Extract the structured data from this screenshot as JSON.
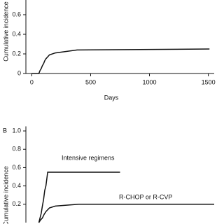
{
  "chart_data": [
    {
      "type": "line",
      "y_label": "Cumulative incidence",
      "x_label": "Days",
      "xlim": [
        -50,
        1550
      ],
      "xticks": [
        0,
        500,
        1000,
        1500
      ],
      "ylim": [
        0,
        0.75
      ],
      "yticks": [
        0,
        0.2,
        0.4,
        0.6
      ],
      "series": [
        {
          "color": "#111111",
          "x": [
            0,
            60,
            70,
            80,
            90,
            100,
            110,
            120,
            135,
            150,
            200,
            260,
            385,
            1510
          ],
          "values": [
            0,
            0,
            0.03,
            0.05,
            0.08,
            0.1,
            0.13,
            0.15,
            0.17,
            0.19,
            0.21,
            0.22,
            0.24,
            0.25
          ]
        }
      ]
    },
    {
      "type": "line",
      "panel_label": "B",
      "y_label": "Cumulative incidence",
      "xlim": [
        -50,
        1550
      ],
      "ylim": [
        0,
        1.05
      ],
      "yticks": [
        0.2,
        0.4,
        0.6,
        {
          "value": 0.8,
          "label": "0.8"
        },
        {
          "value": 1.0,
          "label": "1.0"
        }
      ],
      "series": [
        {
          "name": "Intensive regimens",
          "color": "#111111",
          "x": [
            60,
            70,
            80,
            90,
            100,
            110,
            120,
            135,
            750
          ],
          "values": [
            0,
            0.05,
            0.1,
            0.18,
            0.25,
            0.35,
            0.4,
            0.55,
            0.55
          ]
        },
        {
          "name": "R-CHOP or R-CVP",
          "color": "#111111",
          "x": [
            60,
            75,
            90,
            105,
            120,
            150,
            200,
            400,
            1550
          ],
          "values": [
            0,
            0.03,
            0.05,
            0.09,
            0.12,
            0.16,
            0.18,
            0.2,
            0.2
          ]
        }
      ]
    }
  ]
}
